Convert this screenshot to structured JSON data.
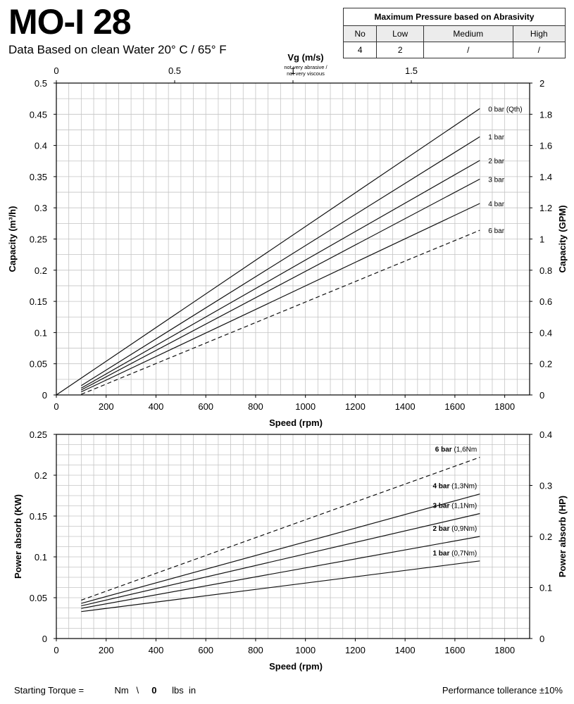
{
  "header": {
    "title": "MO-I 28",
    "subtitle": "Data Based on clean Water 20° C  /  65° F"
  },
  "abrasivity_table": {
    "title": "Maximum Pressure based on Abrasivity",
    "columns": [
      "No",
      "Low",
      "Medium",
      "High"
    ],
    "values": [
      "4",
      "2",
      "/",
      "/"
    ]
  },
  "footer": {
    "torque_label": "Starting Torque =",
    "nm_unit": "Nm",
    "separator": "\\",
    "torque_value": "0",
    "lbs_unit": "lbs  in",
    "tolerance": "Performance tollerance ±10%"
  },
  "chart_data": [
    {
      "type": "line",
      "xlabel": "Speed (rpm)",
      "ylabel": "Capacity (m³/h)",
      "ylabel_right": "Capacity (GPM)",
      "xlabel_top": "Vg (m/s)",
      "top_axis_note": [
        "not very abrasive /",
        "not very viscous"
      ],
      "xlim": [
        0,
        1900
      ],
      "ylim": [
        0,
        0.5
      ],
      "ylim_right": [
        0,
        2
      ],
      "top_axis_range": [
        0,
        2.0
      ],
      "x_ticks": [
        "0",
        "200",
        "400",
        "600",
        "800",
        "1000",
        "1200",
        "1400",
        "1600",
        "1800"
      ],
      "y_ticks": [
        "0",
        "0.05",
        "0.1",
        "0.15",
        "0.2",
        "0.25",
        "0.3",
        "0.35",
        "0.4",
        "0.45",
        "0.5"
      ],
      "y_ticks_right": [
        "0",
        "0.2",
        "0.4",
        "0.6",
        "0.8",
        "1",
        "1.2",
        "1.4",
        "1.6",
        "1.8",
        "2"
      ],
      "top_ticks": [
        "0",
        "0.5",
        "1",
        "1.5"
      ],
      "grid": true,
      "series": [
        {
          "name": "0 bar (Qth)",
          "style": "solid",
          "x": [
            0,
            1700
          ],
          "y": [
            0,
            0.459
          ]
        },
        {
          "name": "1 bar",
          "style": "solid",
          "x": [
            100,
            1700
          ],
          "y": [
            0.015,
            0.414
          ]
        },
        {
          "name": "2 bar",
          "style": "solid",
          "x": [
            100,
            1700
          ],
          "y": [
            0.011,
            0.376
          ]
        },
        {
          "name": "3 bar",
          "style": "solid",
          "x": [
            100,
            1700
          ],
          "y": [
            0.008,
            0.346
          ]
        },
        {
          "name": "4 bar",
          "style": "solid",
          "x": [
            100,
            1700
          ],
          "y": [
            0.005,
            0.307
          ]
        },
        {
          "name": "6 bar",
          "style": "dashed",
          "x": [
            100,
            1700
          ],
          "y": [
            0.001,
            0.264
          ]
        }
      ]
    },
    {
      "type": "line",
      "xlabel": "Speed (rpm)",
      "ylabel": "Power absorb (KW)",
      "ylabel_right": "Power absorb (HP)",
      "xlim": [
        0,
        1900
      ],
      "ylim": [
        0,
        0.25
      ],
      "ylim_right": [
        0,
        0.4
      ],
      "x_ticks": [
        "0",
        "200",
        "400",
        "600",
        "800",
        "1000",
        "1200",
        "1400",
        "1600",
        "1800"
      ],
      "y_ticks": [
        "0",
        "0.05",
        "0.1",
        "0.15",
        "0.2",
        "0.25"
      ],
      "y_ticks_right": [
        "0",
        "0.1",
        "0.2",
        "0.3",
        "0.4"
      ],
      "grid": true,
      "series": [
        {
          "name": "6 bar",
          "torque": "(1,6Nm",
          "style": "dashed",
          "x": [
            100,
            1700
          ],
          "y": [
            0.047,
            0.222
          ]
        },
        {
          "name": "4 bar",
          "torque": "(1,3Nm)",
          "style": "solid",
          "x": [
            100,
            1700
          ],
          "y": [
            0.043,
            0.177
          ]
        },
        {
          "name": "3 bar",
          "torque": "(1,1Nm)",
          "style": "solid",
          "x": [
            100,
            1700
          ],
          "y": [
            0.04,
            0.153
          ]
        },
        {
          "name": "2 bar",
          "torque": "(0,9Nm)",
          "style": "solid",
          "x": [
            100,
            1700
          ],
          "y": [
            0.037,
            0.125
          ]
        },
        {
          "name": "1 bar",
          "torque": "(0,7Nm)",
          "style": "solid",
          "x": [
            100,
            1700
          ],
          "y": [
            0.033,
            0.095
          ]
        }
      ]
    }
  ]
}
